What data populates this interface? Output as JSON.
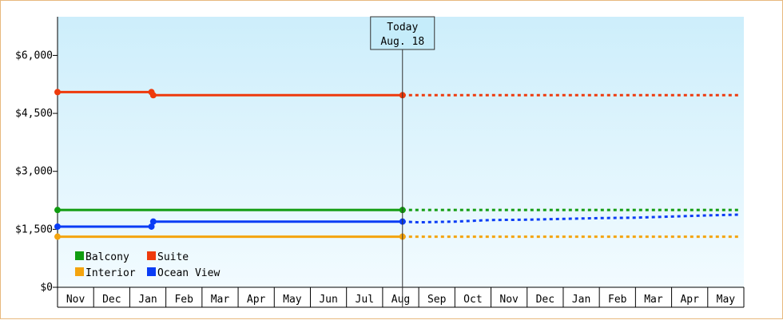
{
  "chart_data": {
    "type": "line",
    "title": "",
    "xlabel": "",
    "ylabel": "",
    "ylim": [
      0,
      7000
    ],
    "y_ticks": [
      0,
      1500,
      3000,
      4500,
      6000
    ],
    "y_tick_labels": [
      "$0",
      "$1,500",
      "$3,000",
      "$4,500",
      "$6,000"
    ],
    "x_tick_labels": [
      "Nov",
      "Dec",
      "Jan",
      "Feb",
      "Mar",
      "Apr",
      "May",
      "Jun",
      "Jul",
      "Aug",
      "Sep",
      "Oct",
      "Nov",
      "Dec",
      "Jan",
      "Feb",
      "Mar",
      "Apr",
      "May"
    ],
    "today_marker": {
      "line1": "Today",
      "line2": "Aug. 18",
      "month_index": 9.55
    },
    "legend_position": "bottom-left",
    "colors": {
      "background_top": "#cdeefb",
      "background_bottom": "#f2fbff",
      "border": "#e8b97e"
    },
    "series": [
      {
        "name": "Suite",
        "color": "#ee3a0c",
        "actual": [
          [
            0,
            5050
          ],
          [
            2.6,
            5050
          ],
          [
            2.65,
            4970
          ],
          [
            9.55,
            4970
          ]
        ],
        "projected": [
          [
            9.55,
            4970
          ],
          [
            18.85,
            4970
          ]
        ],
        "markers": [
          [
            0,
            5050
          ],
          [
            2.6,
            5050
          ],
          [
            2.65,
            4970
          ],
          [
            9.55,
            4970
          ]
        ]
      },
      {
        "name": "Balcony",
        "color": "#109c10",
        "actual": [
          [
            0,
            2000
          ],
          [
            9.55,
            2000
          ]
        ],
        "projected": [
          [
            9.55,
            2000
          ],
          [
            18.85,
            2000
          ]
        ],
        "markers": [
          [
            0,
            2000
          ],
          [
            9.55,
            2000
          ]
        ]
      },
      {
        "name": "Ocean View",
        "color": "#0a3cf5",
        "actual": [
          [
            0,
            1570
          ],
          [
            2.6,
            1570
          ],
          [
            2.65,
            1700
          ],
          [
            9.55,
            1700
          ]
        ],
        "projected": [
          [
            9.55,
            1700
          ],
          [
            10,
            1680
          ],
          [
            11,
            1700
          ],
          [
            12,
            1740
          ],
          [
            13,
            1750
          ],
          [
            14,
            1770
          ],
          [
            15,
            1790
          ],
          [
            16,
            1800
          ],
          [
            17,
            1830
          ],
          [
            18,
            1860
          ],
          [
            18.85,
            1880
          ]
        ],
        "markers": [
          [
            0,
            1570
          ],
          [
            2.6,
            1570
          ],
          [
            2.65,
            1700
          ],
          [
            9.55,
            1700
          ]
        ]
      },
      {
        "name": "Interior",
        "color": "#f4a40e",
        "actual": [
          [
            0,
            1310
          ],
          [
            9.55,
            1310
          ]
        ],
        "projected": [
          [
            9.55,
            1310
          ],
          [
            18.85,
            1310
          ]
        ],
        "markers": [
          [
            0,
            1310
          ],
          [
            9.55,
            1310
          ]
        ]
      }
    ],
    "legend_order": [
      "Balcony",
      "Suite",
      "Interior",
      "Ocean View"
    ]
  }
}
